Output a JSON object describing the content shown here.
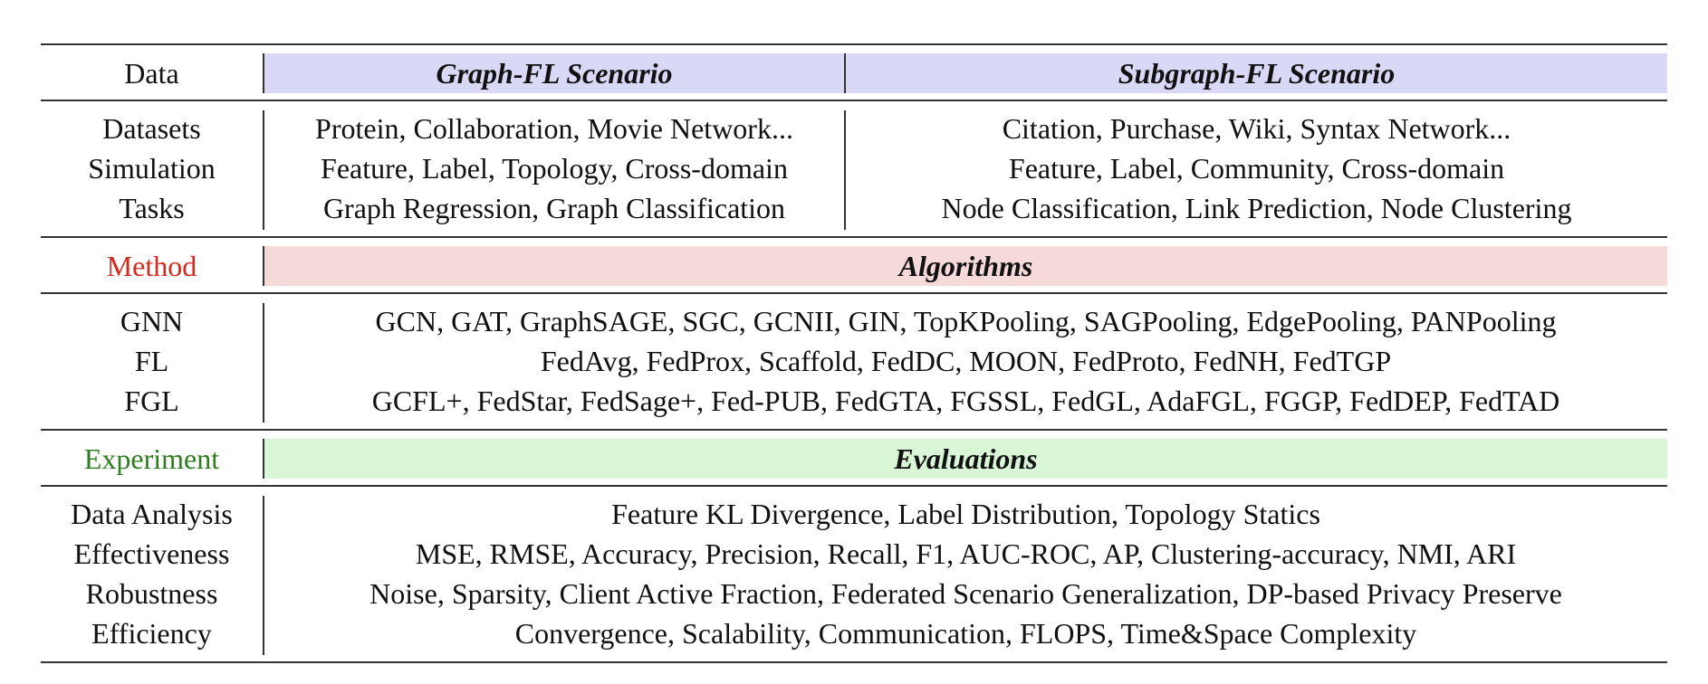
{
  "data_header": {
    "label": "Data",
    "col1": "Graph-FL Scenario",
    "col2": "Subgraph-FL Scenario",
    "band_color": "#d9d9f7"
  },
  "data_rows": [
    {
      "label": "Datasets",
      "graph_fl": "Protein, Collaboration, Movie Network...",
      "subgraph_fl": "Citation, Purchase, Wiki, Syntax Network..."
    },
    {
      "label": "Simulation",
      "graph_fl": "Feature, Label, Topology, Cross-domain",
      "subgraph_fl": "Feature, Label, Community, Cross-domain"
    },
    {
      "label": "Tasks",
      "graph_fl": "Graph Regression, Graph Classification",
      "subgraph_fl": "Node Classification, Link Prediction, Node Clustering"
    }
  ],
  "method_header": {
    "label": "Method",
    "label_color": "#d42a1e",
    "title": "Algorithms",
    "band_color": "#f6d9d9"
  },
  "method_rows": [
    {
      "label": "GNN",
      "value": "GCN, GAT, GraphSAGE, SGC, GCNII, GIN, TopKPooling, SAGPooling, EdgePooling, PANPooling"
    },
    {
      "label": "FL",
      "value": "FedAvg, FedProx, Scaffold, FedDC, MOON, FedProto, FedNH, FedTGP"
    },
    {
      "label": "FGL",
      "value": "GCFL+, FedStar, FedSage+, Fed-PUB, FedGTA, FGSSL, FedGL, AdaFGL, FGGP, FedDEP, FedTAD"
    }
  ],
  "experiment_header": {
    "label": "Experiment",
    "label_color": "#2e7d1e",
    "title": "Evaluations",
    "band_color": "#d9f7d6"
  },
  "experiment_rows": [
    {
      "label": "Data Analysis",
      "value": "Feature KL Divergence, Label Distribution, Topology Statics"
    },
    {
      "label": "Effectiveness",
      "value": "MSE, RMSE, Accuracy, Precision, Recall, F1, AUC-ROC, AP, Clustering-accuracy, NMI, ARI"
    },
    {
      "label": "Robustness",
      "value": "Noise, Sparsity, Client Active Fraction, Federated Scenario Generalization, DP-based Privacy Preserve"
    },
    {
      "label": "Efficiency",
      "value": "Convergence, Scalability, Communication, FLOPS, Time&Space Complexity"
    }
  ]
}
